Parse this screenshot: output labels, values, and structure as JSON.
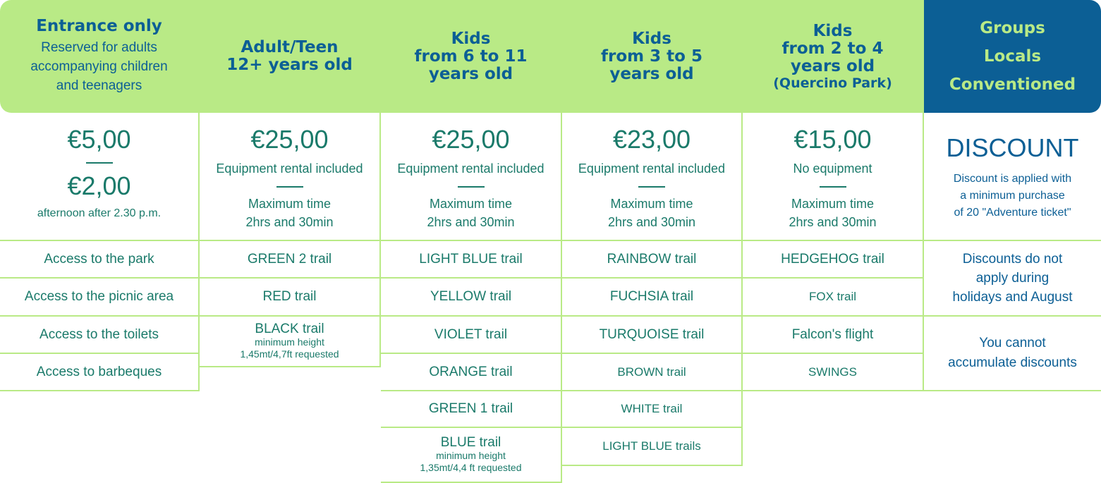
{
  "columns": {
    "c1": {
      "title": "Entrance only",
      "subtitle_1": "Reserved for adults",
      "subtitle_2": "accompanying children",
      "subtitle_3": "and teenagers",
      "price_1": "€5,00",
      "price_2": "€2,00",
      "price_note": "afternoon after 2.30 p.m.",
      "rows": [
        "Access to the park",
        "Access to the picnic area",
        "Access to the toilets",
        "Access to barbeques"
      ]
    },
    "c2": {
      "title_1": "Adult/Teen",
      "title_2": "12+ years old",
      "price": "€25,00",
      "equipment": "Equipment rental included",
      "time_1": "Maximum time",
      "time_2": "2hrs and 30min",
      "rows": [
        "GREEN 2 trail",
        "RED trail",
        "BLACK trail"
      ],
      "row3_note_1": "minimum height",
      "row3_note_2": "1,45mt/4,7ft requested"
    },
    "c3": {
      "title_1": "Kids",
      "title_2": "from 6 to 11",
      "title_3": "years old",
      "price": "€25,00",
      "equipment": "Equipment rental included",
      "time_1": "Maximum time",
      "time_2": "2hrs and 30min",
      "rows": [
        "LIGHT BLUE trail",
        "YELLOW trail",
        "VIOLET trail",
        "ORANGE trail",
        "GREEN 1 trail",
        "BLUE trail"
      ],
      "row6_note_1": "minimum height",
      "row6_note_2": "1,35mt/4,4 ft requested"
    },
    "c4": {
      "title_1": "Kids",
      "title_2": "from 3 to 5",
      "title_3": "years old",
      "price": "€23,00",
      "equipment": "Equipment rental included",
      "time_1": "Maximum time",
      "time_2": "2hrs and 30min",
      "rows": [
        "RAINBOW trail",
        "FUCHSIA trail",
        "TURQUOISE trail",
        "BROWN trail",
        "WHITE trail",
        "LIGHT BLUE trails"
      ]
    },
    "c5": {
      "title_1": "Kids",
      "title_2": "from 2 to 4",
      "title_3": "years old",
      "title_4": "(Quercino Park)",
      "price": "€15,00",
      "equipment": "No equipment",
      "time_1": "Maximum time",
      "time_2": "2hrs and 30min",
      "rows": [
        "HEDGEHOG trail",
        "FOX trail",
        "Falcon's flight",
        "SWINGS"
      ]
    },
    "c6": {
      "title_1": "Groups",
      "title_2": "Locals",
      "title_3": "Conventioned",
      "discount": "DISCOUNT",
      "disc_1": "Discount is applied with",
      "disc_2": "a minimum purchase",
      "disc_3": "of 20 \"Adventure ticket\"",
      "note1_1": "Discounts do not",
      "note1_2": "apply during",
      "note1_3": "holidays and August",
      "note2_1": "You cannot",
      "note2_2": "accumulate discounts"
    }
  },
  "colors": {
    "header_green": "#b9ea86",
    "header_blue": "#0c5f95",
    "text_teal": "#1a7a6a"
  }
}
